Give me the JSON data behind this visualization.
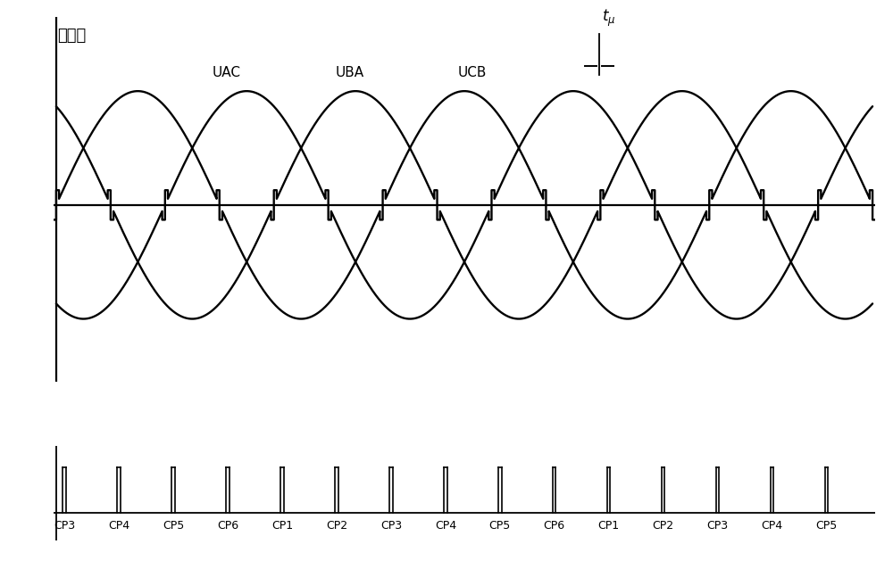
{
  "title_label": "线电压",
  "wave_labels": [
    "UAC",
    "UBA",
    "UCB"
  ],
  "cp_labels": [
    "CP3",
    "CP4",
    "CP5",
    "CP6",
    "CP1",
    "CP2",
    "CP3",
    "CP4",
    "CP5",
    "CP6",
    "CP1",
    "CP2",
    "CP3",
    "CP4",
    "CP5"
  ],
  "bg_color": "#ffffff",
  "line_color": "#000000",
  "fig_width": 10.0,
  "fig_height": 6.38
}
